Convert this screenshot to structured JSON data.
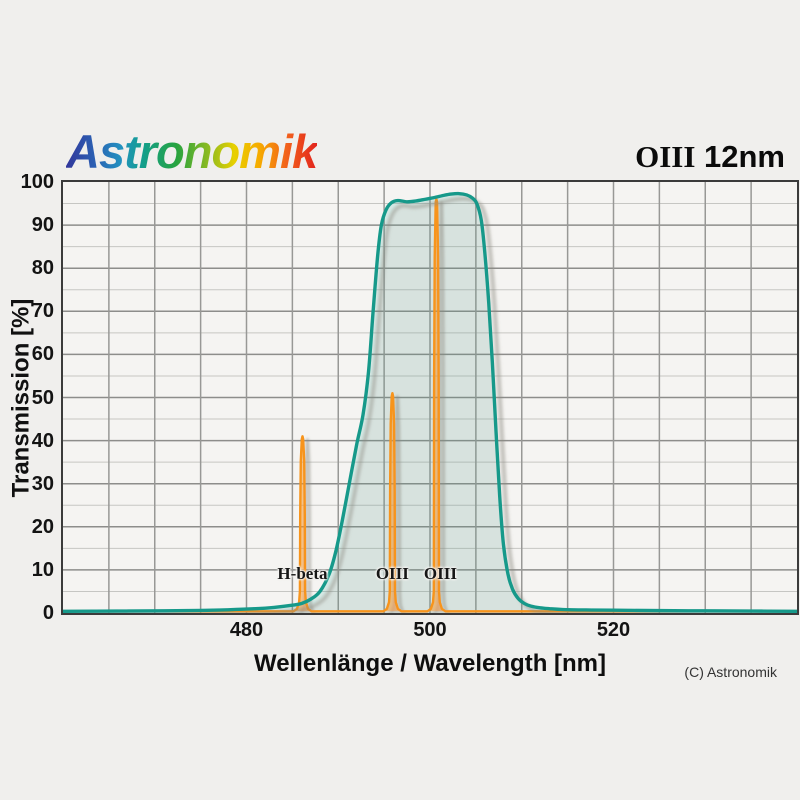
{
  "page": {
    "logo_text": "Astronomik",
    "title_serif": "OIII",
    "title_rest": " 12nm",
    "copyright": "(C) Astronomik"
  },
  "chart_data": {
    "type": "area",
    "title": "OIII 12nm",
    "xlabel": "Wellenlänge / Wavelength [nm]",
    "ylabel": "Transmission [%]",
    "xlim": [
      460,
      540
    ],
    "ylim": [
      0,
      100
    ],
    "x_ticks": [
      480,
      500,
      520
    ],
    "x_grid_step": 5,
    "y_ticks": [
      0,
      10,
      20,
      30,
      40,
      50,
      60,
      70,
      80,
      90,
      100
    ],
    "y_grid_minor_step": 5,
    "grid": true,
    "legend": "none",
    "colors": {
      "filter_line": "#18998a",
      "filter_fill": "rgba(24,153,138,0.13)",
      "emission_line": "#f7941d",
      "emission_fill": "rgba(247,148,29,0.5)",
      "grid_major": "#8d8d8b",
      "grid_minor": "#c6c6c3",
      "grid_vertical": "#989896",
      "shadow": "#8a887f"
    },
    "series": [
      {
        "name": "filter-transmission",
        "points": [
          [
            460,
            0.4
          ],
          [
            466,
            0.45
          ],
          [
            471,
            0.5
          ],
          [
            475,
            0.6
          ],
          [
            478,
            0.75
          ],
          [
            481,
            1.0
          ],
          [
            483,
            1.3
          ],
          [
            485,
            1.8
          ],
          [
            486,
            2.2
          ],
          [
            487,
            3.2
          ],
          [
            488,
            5
          ],
          [
            489,
            9
          ],
          [
            489.7,
            14
          ],
          [
            490.4,
            21
          ],
          [
            491.2,
            30
          ],
          [
            492,
            39
          ],
          [
            492.7,
            46
          ],
          [
            493.3,
            56
          ],
          [
            493.8,
            70
          ],
          [
            494.3,
            83
          ],
          [
            494.7,
            90
          ],
          [
            495.2,
            93.5
          ],
          [
            495.8,
            95.2
          ],
          [
            496.5,
            95.7
          ],
          [
            497.5,
            95.4
          ],
          [
            498.5,
            95.6
          ],
          [
            499.5,
            96
          ],
          [
            500.5,
            96.4
          ],
          [
            501.5,
            96.9
          ],
          [
            502.3,
            97.2
          ],
          [
            503.2,
            97.3
          ],
          [
            504,
            97
          ],
          [
            504.6,
            96.3
          ],
          [
            505.1,
            95
          ],
          [
            505.6,
            91
          ],
          [
            506,
            83
          ],
          [
            506.4,
            72
          ],
          [
            506.8,
            58
          ],
          [
            507.2,
            42
          ],
          [
            507.6,
            27
          ],
          [
            508,
            16
          ],
          [
            508.5,
            9
          ],
          [
            509,
            5.5
          ],
          [
            509.6,
            3.4
          ],
          [
            510.3,
            2.2
          ],
          [
            511,
            1.6
          ],
          [
            512,
            1.2
          ],
          [
            513,
            1
          ],
          [
            514.5,
            0.8
          ],
          [
            517,
            0.7
          ],
          [
            520,
            0.65
          ],
          [
            525,
            0.55
          ],
          [
            530,
            0.5
          ],
          [
            535,
            0.45
          ],
          [
            540,
            0.4
          ]
        ]
      },
      {
        "name": "emission-lines",
        "baseline": 0.4,
        "lines": [
          {
            "label": "H-beta",
            "wavelength": 486.1,
            "peak": 41
          },
          {
            "label": "OIII",
            "wavelength": 495.9,
            "peak": 51
          },
          {
            "label": "OIII",
            "wavelength": 500.7,
            "peak": 96
          }
        ]
      }
    ]
  }
}
